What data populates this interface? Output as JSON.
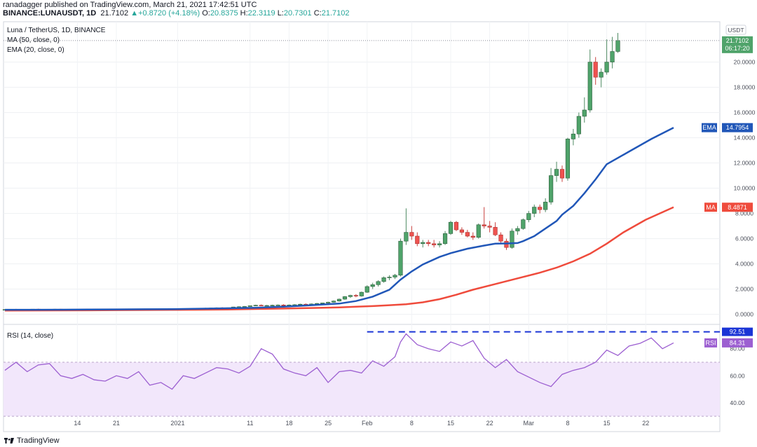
{
  "header": {
    "line1": "ranadagger published on TradingView.com, March 21, 2021 17:42:51 UTC",
    "symbol": "BINANCE:LUNAUSDT, 1D",
    "price": "21.7102",
    "change": "+0.8720 (+4.18%)",
    "o_label": "O:",
    "o": "20.8375",
    "h_label": "H:",
    "h": "22.3119",
    "l_label": "L:",
    "l": "20.7301",
    "c_label": "C:",
    "c": "21.7102"
  },
  "legend": {
    "title": "Luna / TetherUS, 1D, BINANCE",
    "ma": "MA (50, close, 0)",
    "ema": "EMA (20, close, 0)",
    "rsi": "RSI (14, close)"
  },
  "currency": "USDT",
  "tags": {
    "price": "21.7102",
    "countdown": "06:17:20",
    "ema_label": "EMA",
    "ema_value": "14.7954",
    "ma_label": "MA",
    "ma_value": "8.4871",
    "rsi_label": "RSI",
    "rsi_value": "84.31",
    "rsi_max": "92.51"
  },
  "footer": {
    "brand": "TradingView"
  },
  "colors": {
    "up": "#26a69a",
    "down": "#ef5350",
    "candle_up_fill": "#4fa36a",
    "ema": "#2157b8",
    "ma": "#ef4b3c",
    "rsi": "#9c5fd1",
    "rsi_band": "#f2e7fb"
  },
  "chart_data": [
    {
      "type": "candlestick",
      "title": "Luna / TetherUS, 1D, BINANCE",
      "x_tick_labels": [
        "14",
        "21",
        "2021",
        "11",
        "18",
        "25",
        "Feb",
        "8",
        "15",
        "22",
        "Mar",
        "8",
        "15",
        "22"
      ],
      "y_tick_labels": [
        "0.0000",
        "2.0000",
        "4.0000",
        "6.0000",
        "8.0000",
        "10.0000",
        "12.0000",
        "14.0000",
        "16.0000",
        "18.0000",
        "20.0000"
      ],
      "ylim": [
        -0.8,
        23.2
      ],
      "grid": true,
      "days": 121,
      "ohlc": [
        [
          0.35,
          0.4,
          0.33,
          0.38
        ],
        [
          0.38,
          0.42,
          0.36,
          0.4
        ],
        [
          0.4,
          0.43,
          0.37,
          0.39
        ],
        [
          0.39,
          0.41,
          0.36,
          0.38
        ],
        [
          0.38,
          0.4,
          0.35,
          0.37
        ],
        [
          0.37,
          0.42,
          0.36,
          0.41
        ],
        [
          0.41,
          0.44,
          0.38,
          0.4
        ],
        [
          0.4,
          0.42,
          0.37,
          0.38
        ],
        [
          0.38,
          0.41,
          0.36,
          0.4
        ],
        [
          0.4,
          0.43,
          0.38,
          0.41
        ],
        [
          0.41,
          0.43,
          0.38,
          0.39
        ],
        [
          0.39,
          0.41,
          0.37,
          0.38
        ],
        [
          0.38,
          0.4,
          0.36,
          0.37
        ],
        [
          0.37,
          0.4,
          0.35,
          0.39
        ],
        [
          0.39,
          0.42,
          0.37,
          0.4
        ],
        [
          0.4,
          0.42,
          0.38,
          0.39
        ],
        [
          0.39,
          0.41,
          0.37,
          0.38
        ],
        [
          0.38,
          0.41,
          0.36,
          0.4
        ],
        [
          0.4,
          0.42,
          0.38,
          0.41
        ],
        [
          0.41,
          0.43,
          0.39,
          0.4
        ],
        [
          0.4,
          0.42,
          0.37,
          0.38
        ],
        [
          0.38,
          0.41,
          0.36,
          0.4
        ],
        [
          0.4,
          0.43,
          0.38,
          0.42
        ],
        [
          0.42,
          0.44,
          0.4,
          0.41
        ],
        [
          0.41,
          0.43,
          0.39,
          0.4
        ],
        [
          0.4,
          0.42,
          0.37,
          0.38
        ],
        [
          0.38,
          0.4,
          0.35,
          0.36
        ],
        [
          0.36,
          0.39,
          0.34,
          0.38
        ],
        [
          0.38,
          0.4,
          0.35,
          0.37
        ],
        [
          0.37,
          0.39,
          0.34,
          0.35
        ],
        [
          0.35,
          0.38,
          0.33,
          0.37
        ],
        [
          0.37,
          0.4,
          0.35,
          0.39
        ],
        [
          0.39,
          0.42,
          0.38,
          0.41
        ],
        [
          0.41,
          0.45,
          0.4,
          0.44
        ],
        [
          0.44,
          0.48,
          0.42,
          0.46
        ],
        [
          0.46,
          0.5,
          0.44,
          0.48
        ],
        [
          0.48,
          0.52,
          0.45,
          0.49
        ],
        [
          0.49,
          0.53,
          0.46,
          0.5
        ],
        [
          0.5,
          0.55,
          0.48,
          0.52
        ],
        [
          0.52,
          0.56,
          0.49,
          0.5
        ],
        [
          0.5,
          0.54,
          0.47,
          0.52
        ],
        [
          0.52,
          0.6,
          0.5,
          0.58
        ],
        [
          0.58,
          0.64,
          0.55,
          0.6
        ],
        [
          0.6,
          0.66,
          0.56,
          0.62
        ],
        [
          0.62,
          0.7,
          0.6,
          0.68
        ],
        [
          0.68,
          0.76,
          0.64,
          0.72
        ],
        [
          0.72,
          0.78,
          0.66,
          0.68
        ],
        [
          0.68,
          0.74,
          0.64,
          0.7
        ],
        [
          0.7,
          0.76,
          0.66,
          0.72
        ],
        [
          0.72,
          0.78,
          0.68,
          0.74
        ],
        [
          0.74,
          0.8,
          0.7,
          0.72
        ],
        [
          0.72,
          0.78,
          0.68,
          0.74
        ],
        [
          0.74,
          0.8,
          0.7,
          0.76
        ],
        [
          0.76,
          0.84,
          0.72,
          0.8
        ],
        [
          0.8,
          0.86,
          0.74,
          0.78
        ],
        [
          0.78,
          0.86,
          0.76,
          0.82
        ],
        [
          0.82,
          0.9,
          0.78,
          0.86
        ],
        [
          0.86,
          0.92,
          0.82,
          0.9
        ],
        [
          0.9,
          1.0,
          0.86,
          0.96
        ],
        [
          0.96,
          1.1,
          0.92,
          1.05
        ],
        [
          1.05,
          1.25,
          1.0,
          1.2
        ],
        [
          1.2,
          1.45,
          1.15,
          1.4
        ],
        [
          1.4,
          1.55,
          1.3,
          1.5
        ],
        [
          1.5,
          1.6,
          1.35,
          1.45
        ],
        [
          1.45,
          1.8,
          1.4,
          1.75
        ],
        [
          1.75,
          2.3,
          1.7,
          2.2
        ],
        [
          2.2,
          2.5,
          2.0,
          2.35
        ],
        [
          2.35,
          2.7,
          2.2,
          2.6
        ],
        [
          2.6,
          3.0,
          2.5,
          2.9
        ],
        [
          2.9,
          3.1,
          2.7,
          2.95
        ],
        [
          2.95,
          3.2,
          2.8,
          3.1
        ],
        [
          3.1,
          6.0,
          3.0,
          5.8
        ],
        [
          5.8,
          8.4,
          5.5,
          6.5
        ],
        [
          6.5,
          7.0,
          5.9,
          6.2
        ],
        [
          6.2,
          6.5,
          5.4,
          5.6
        ],
        [
          5.6,
          5.9,
          5.3,
          5.7
        ],
        [
          5.7,
          5.9,
          5.4,
          5.6
        ],
        [
          5.6,
          5.9,
          5.3,
          5.5
        ],
        [
          5.5,
          5.8,
          5.3,
          5.6
        ],
        [
          5.6,
          6.6,
          5.5,
          6.4
        ],
        [
          6.4,
          7.4,
          6.3,
          7.3
        ],
        [
          7.3,
          7.4,
          6.6,
          6.7
        ],
        [
          6.7,
          6.9,
          6.3,
          6.5
        ],
        [
          6.5,
          6.7,
          6.1,
          6.2
        ],
        [
          6.2,
          6.5,
          5.9,
          6.1
        ],
        [
          6.1,
          7.2,
          6.0,
          7.1
        ],
        [
          7.1,
          8.5,
          6.8,
          7.0
        ],
        [
          7.0,
          7.4,
          6.5,
          6.9
        ],
        [
          6.9,
          7.3,
          6.2,
          6.3
        ],
        [
          6.3,
          6.5,
          5.6,
          5.8
        ],
        [
          5.8,
          6.0,
          5.1,
          5.3
        ],
        [
          5.3,
          6.8,
          5.2,
          6.6
        ],
        [
          6.6,
          7.0,
          6.3,
          6.8
        ],
        [
          6.8,
          7.6,
          6.7,
          7.5
        ],
        [
          7.5,
          8.2,
          7.3,
          8.0
        ],
        [
          8.0,
          8.7,
          7.7,
          8.5
        ],
        [
          8.5,
          8.7,
          8.0,
          8.3
        ],
        [
          8.3,
          9.2,
          8.1,
          8.9
        ],
        [
          8.9,
          11.6,
          8.7,
          11.0
        ],
        [
          11.0,
          12.1,
          10.5,
          11.5
        ],
        [
          11.5,
          11.8,
          10.5,
          10.8
        ],
        [
          10.8,
          14.0,
          10.6,
          13.9
        ],
        [
          13.9,
          14.7,
          13.4,
          14.3
        ],
        [
          14.3,
          16.0,
          14.0,
          15.7
        ],
        [
          15.7,
          17.2,
          15.2,
          16.2
        ],
        [
          16.2,
          21.0,
          16.0,
          20.0
        ],
        [
          20.0,
          20.4,
          18.2,
          18.8
        ],
        [
          18.8,
          19.5,
          18.0,
          19.2
        ],
        [
          19.2,
          21.8,
          19.0,
          20.0
        ],
        [
          20.0,
          22.0,
          19.5,
          20.84
        ],
        [
          20.84,
          22.31,
          20.73,
          21.71
        ]
      ],
      "ema20": [
        0.36,
        0.36,
        0.37,
        0.38,
        0.39,
        0.4,
        0.41,
        0.44,
        0.48,
        0.52,
        0.6,
        0.72,
        0.85,
        1.05,
        1.4,
        1.95,
        2.75,
        3.4,
        3.95,
        4.55,
        4.85,
        5.2,
        5.45,
        5.6,
        5.62,
        5.65,
        5.8,
        6.2,
        6.8,
        7.4,
        7.9,
        8.6,
        9.6,
        10.7,
        11.9,
        12.9,
        13.9,
        14.8
      ],
      "ema20_days": [
        0,
        5,
        10,
        15,
        20,
        25,
        30,
        35,
        40,
        45,
        50,
        55,
        60,
        63,
        66,
        69,
        71,
        73,
        75,
        78,
        80,
        83,
        86,
        88,
        90,
        92,
        93,
        95,
        97,
        99,
        100,
        102,
        104,
        106,
        108,
        112,
        116,
        120
      ],
      "ma50": [
        0.3,
        0.31,
        0.33,
        0.35,
        0.38,
        0.42,
        0.46,
        0.5,
        0.55,
        0.6,
        0.65,
        0.72,
        0.8,
        0.95,
        1.2,
        1.55,
        1.95,
        2.4,
        2.85,
        3.3,
        3.7,
        4.2,
        4.8,
        5.6,
        6.5,
        7.5,
        8.49
      ],
      "ma50_days": [
        0,
        10,
        20,
        30,
        40,
        45,
        50,
        55,
        60,
        63,
        66,
        69,
        72,
        75,
        78,
        81,
        84,
        88,
        92,
        96,
        99,
        102,
        105,
        108,
        111,
        115,
        120
      ],
      "rsi": {
        "label": "RSI (14, close)",
        "ylim": [
          28,
          98
        ],
        "band": [
          30,
          70
        ],
        "y_tick_labels": [
          "40.00",
          "60.00",
          "80.00"
        ],
        "max_line": 92.51,
        "last": 84.31,
        "days": [
          0,
          2,
          4,
          6,
          8,
          10,
          12,
          14,
          16,
          18,
          20,
          22,
          24,
          26,
          28,
          30,
          32,
          34,
          36,
          38,
          40,
          42,
          44,
          46,
          48,
          50,
          52,
          54,
          56,
          58,
          60,
          62,
          64,
          66,
          68,
          70,
          71,
          72,
          74,
          76,
          78,
          80,
          82,
          84,
          86,
          88,
          90,
          92,
          94,
          96,
          98,
          100,
          102,
          104,
          106,
          108,
          110,
          112,
          114,
          116,
          118,
          120
        ],
        "values": [
          64,
          70,
          63,
          68,
          69,
          60,
          58,
          61,
          57,
          56,
          60,
          58,
          63,
          53,
          55,
          50,
          60,
          58,
          62,
          66,
          65,
          62,
          67,
          80,
          76,
          65,
          62,
          60,
          66,
          55,
          63,
          64,
          62,
          71,
          67,
          74,
          85,
          91,
          83,
          80,
          78,
          85,
          82,
          86,
          73,
          66,
          72,
          63,
          59,
          55,
          52,
          61,
          64,
          66,
          70,
          79,
          75,
          82,
          84,
          88,
          80,
          84.31
        ]
      }
    }
  ]
}
